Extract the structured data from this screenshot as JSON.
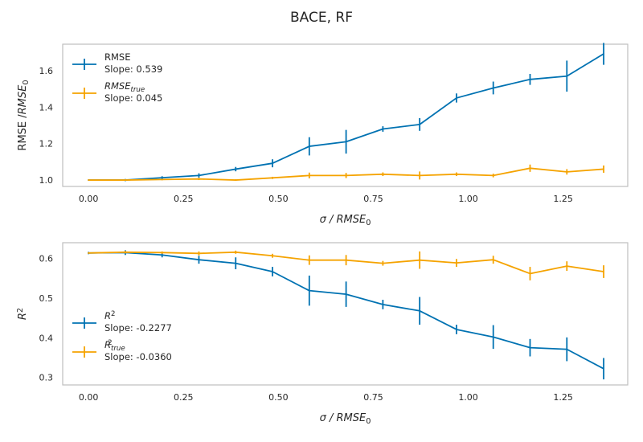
{
  "figure": {
    "title": "BACE, RF"
  },
  "colors": {
    "blue": "#0072b2",
    "orange": "#f5a300",
    "axis": "#bfbfbf",
    "text": "#262626"
  },
  "chart_data": [
    {
      "type": "line",
      "ylabel_parts": [
        "RMSE /",
        "RMSE",
        "0"
      ],
      "xlabel_parts": [
        "σ / ",
        "RMSE",
        "0"
      ],
      "xlim": [
        -0.068,
        1.42
      ],
      "ylim": [
        0.965,
        1.745
      ],
      "xticks": [
        0.0,
        0.25,
        0.5,
        0.75,
        1.0,
        1.25
      ],
      "xtick_labels": [
        "0.00",
        "0.25",
        "0.50",
        "0.75",
        "1.00",
        "1.25"
      ],
      "yticks": [
        1.0,
        1.2,
        1.4,
        1.6
      ],
      "ytick_labels": [
        "1.0",
        "1.2",
        "1.4",
        "1.6"
      ],
      "legend_position": "upper-left",
      "x": [
        0.0,
        0.0969,
        0.1938,
        0.2907,
        0.3876,
        0.4845,
        0.5814,
        0.6783,
        0.7752,
        0.8721,
        0.969,
        1.0659,
        1.1628,
        1.2597,
        1.3566
      ],
      "series": [
        {
          "name_parts": [
            "RMSE",
            "",
            ""
          ],
          "slope_text": "Slope: 0.539",
          "color": "blue",
          "values": [
            1.0,
            1.0,
            1.013,
            1.025,
            1.06,
            1.092,
            1.185,
            1.21,
            1.28,
            1.305,
            1.45,
            1.505,
            1.552,
            1.57,
            1.692
          ],
          "errors": [
            0.003,
            0.006,
            0.008,
            0.012,
            0.012,
            0.022,
            0.05,
            0.065,
            0.015,
            0.035,
            0.025,
            0.035,
            0.03,
            0.085,
            0.06
          ]
        },
        {
          "name_parts": [
            "RMSE",
            "true",
            ""
          ],
          "slope_text": "Slope: 0.045",
          "color": "orange",
          "values": [
            1.0,
            1.0,
            1.003,
            1.006,
            1.0,
            1.012,
            1.025,
            1.025,
            1.032,
            1.025,
            1.032,
            1.025,
            1.065,
            1.045,
            1.06
          ],
          "errors": [
            0.003,
            0.004,
            0.004,
            0.006,
            0.004,
            0.006,
            0.016,
            0.014,
            0.01,
            0.022,
            0.01,
            0.01,
            0.02,
            0.015,
            0.02
          ]
        }
      ]
    },
    {
      "type": "line",
      "ylabel_parts": [
        "R",
        "",
        "2"
      ],
      "xlabel_parts": [
        "σ / ",
        "RMSE",
        "0"
      ],
      "xlim": [
        -0.068,
        1.42
      ],
      "ylim": [
        0.281,
        0.64
      ],
      "xticks": [
        0.0,
        0.25,
        0.5,
        0.75,
        1.0,
        1.25
      ],
      "xtick_labels": [
        "0.00",
        "0.25",
        "0.50",
        "0.75",
        "1.00",
        "1.25"
      ],
      "yticks": [
        0.3,
        0.4,
        0.5,
        0.6
      ],
      "ytick_labels": [
        "0.3",
        "0.4",
        "0.5",
        "0.6"
      ],
      "legend_position": "lower-left",
      "x": [
        0.0,
        0.0969,
        0.1938,
        0.2907,
        0.3876,
        0.4845,
        0.5814,
        0.6783,
        0.7752,
        0.8721,
        0.969,
        1.0659,
        1.1628,
        1.2597,
        1.3566
      ],
      "series": [
        {
          "name_parts": [
            "R",
            "",
            "2"
          ],
          "slope_text": "Slope: -0.2277",
          "color": "blue",
          "values": [
            0.614,
            0.615,
            0.609,
            0.597,
            0.588,
            0.567,
            0.519,
            0.51,
            0.484,
            0.468,
            0.421,
            0.402,
            0.375,
            0.371,
            0.322
          ],
          "errors": [
            0.003,
            0.006,
            0.006,
            0.01,
            0.015,
            0.012,
            0.038,
            0.032,
            0.012,
            0.035,
            0.012,
            0.03,
            0.022,
            0.03,
            0.027
          ]
        },
        {
          "name_parts": [
            "R",
            "true",
            "2"
          ],
          "slope_text": "Slope: -0.0360",
          "color": "orange",
          "values": [
            0.614,
            0.616,
            0.615,
            0.613,
            0.616,
            0.607,
            0.596,
            0.596,
            0.588,
            0.596,
            0.589,
            0.597,
            0.562,
            0.581,
            0.567
          ],
          "errors": [
            0.002,
            0.003,
            0.003,
            0.005,
            0.004,
            0.005,
            0.012,
            0.013,
            0.006,
            0.022,
            0.01,
            0.01,
            0.017,
            0.012,
            0.016
          ]
        }
      ]
    }
  ]
}
